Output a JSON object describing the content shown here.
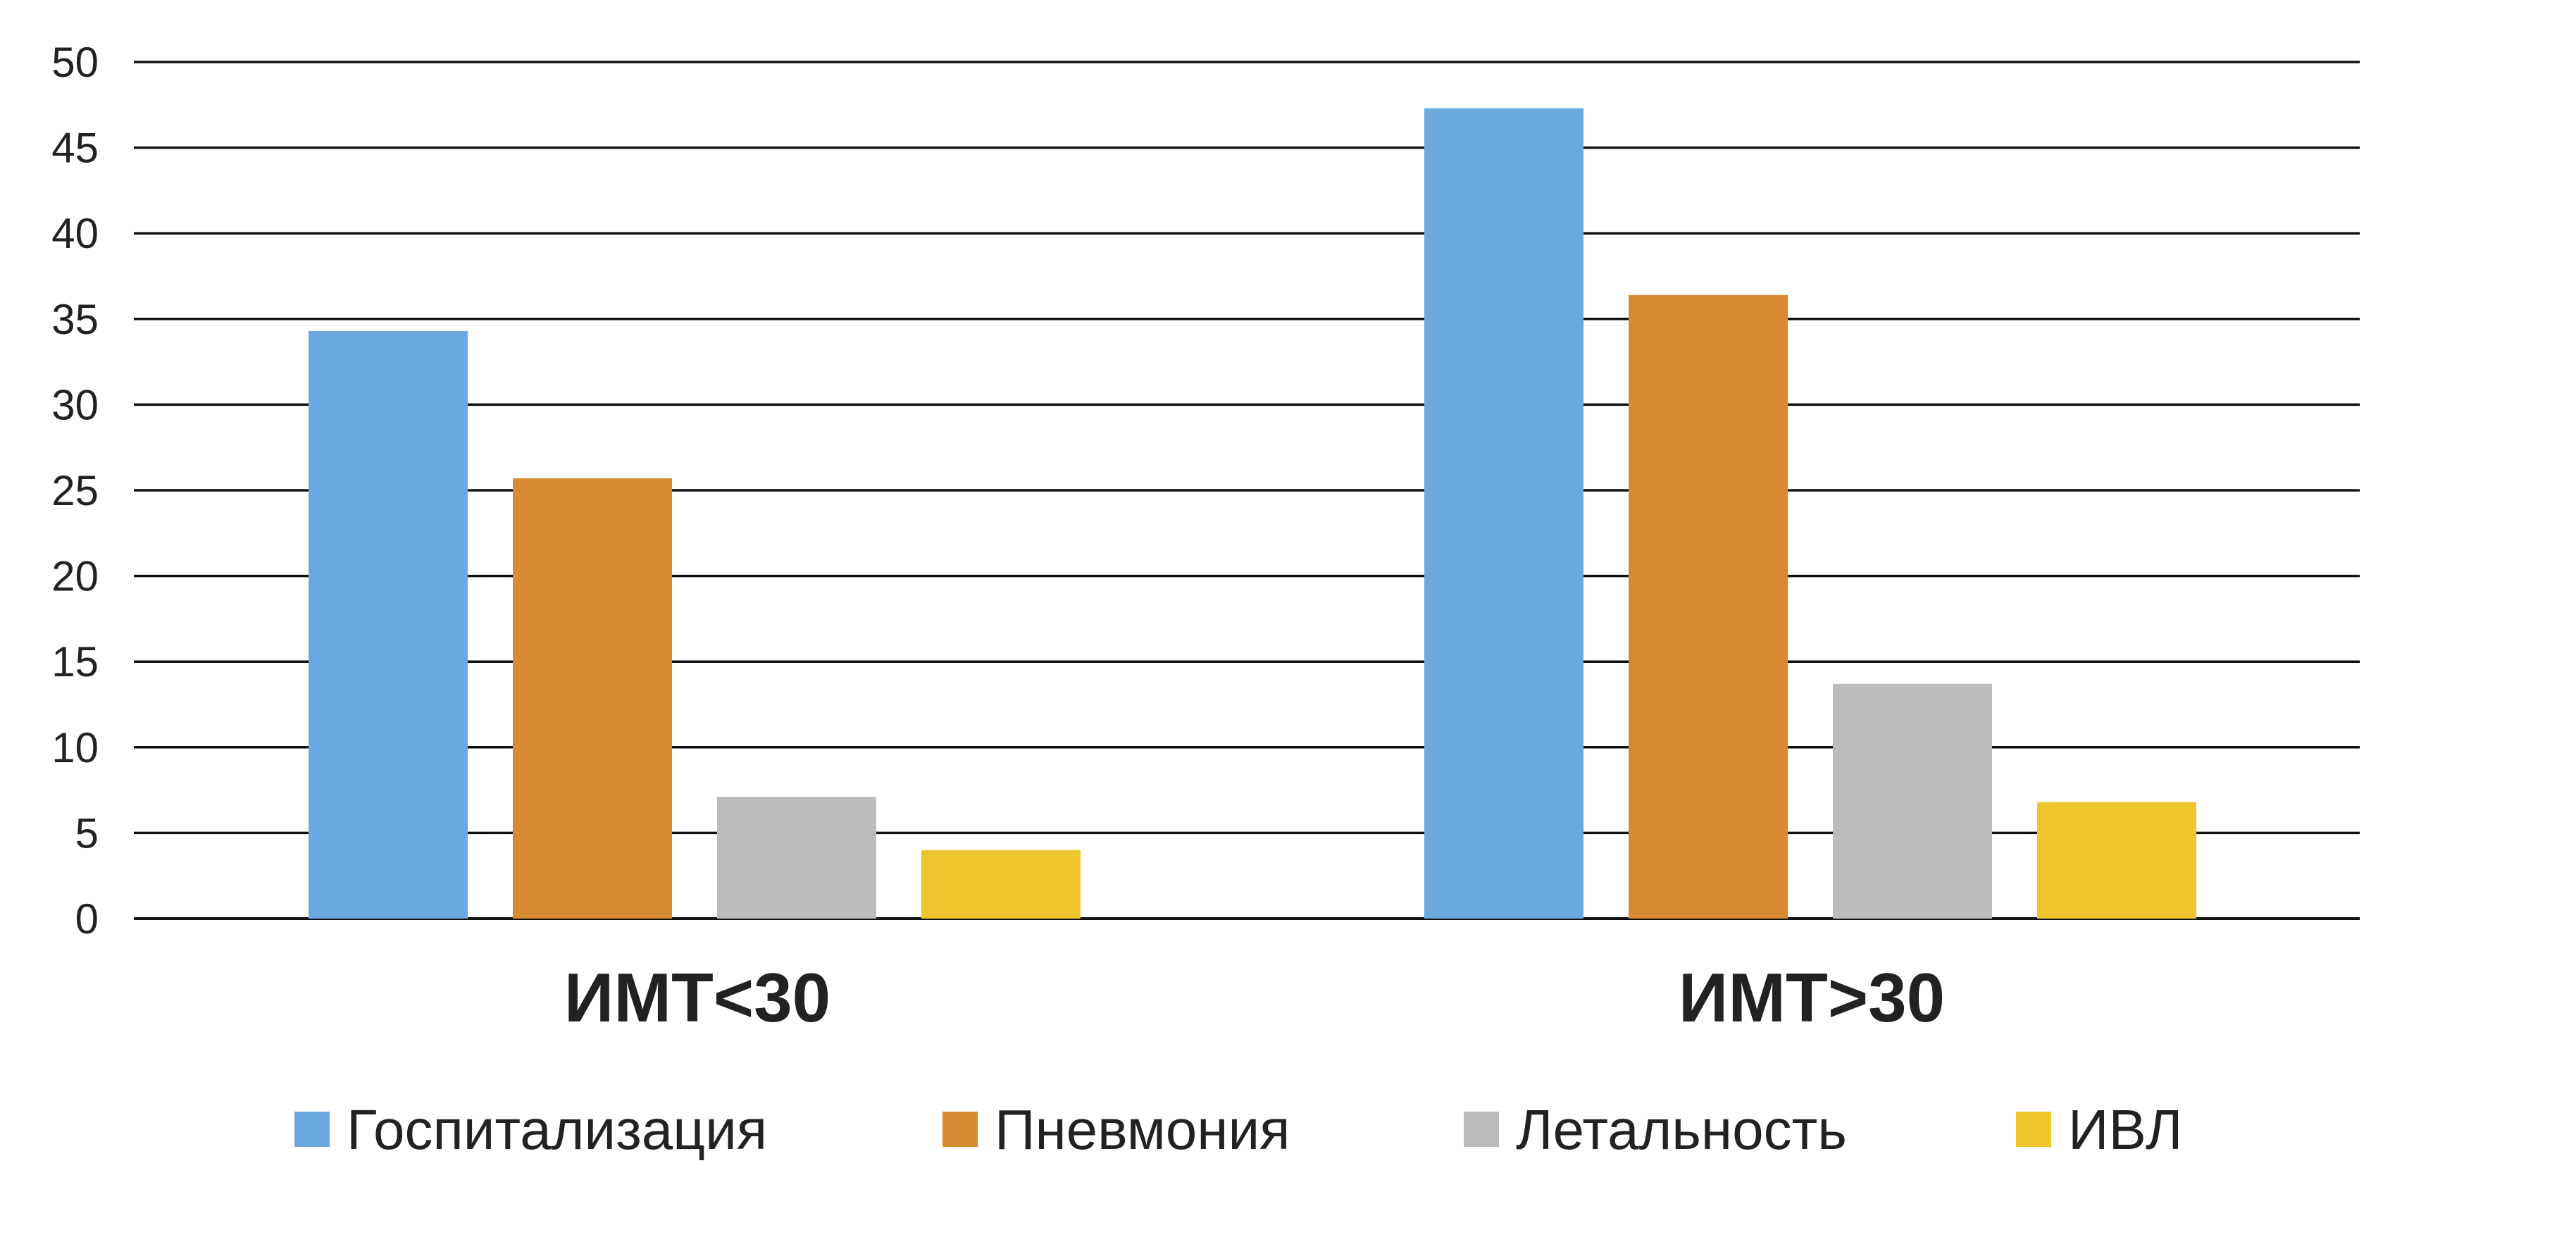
{
  "chart_data": {
    "type": "bar",
    "title": "",
    "xlabel": "",
    "ylabel": "",
    "categories": [
      "ИМТ<30",
      "ИМТ>30"
    ],
    "series": [
      {
        "name": "Госпитализация",
        "color": "#6aa8de",
        "values": [
          34.3,
          47.3
        ]
      },
      {
        "name": "Пневмония",
        "color": "#d88a32",
        "values": [
          25.7,
          36.4
        ]
      },
      {
        "name": "Летальность",
        "color": "#bcbaba",
        "values": [
          7.1,
          13.7
        ]
      },
      {
        "name": "ИВЛ",
        "color": "#efc52f",
        "values": [
          4.0,
          6.8
        ]
      }
    ],
    "ylim": [
      0,
      50
    ],
    "yticks": [
      "0",
      "5",
      "10",
      "15",
      "20",
      "25",
      "30",
      "35",
      "40",
      "45",
      "50"
    ],
    "grid": true,
    "legend_position": "bottom"
  }
}
